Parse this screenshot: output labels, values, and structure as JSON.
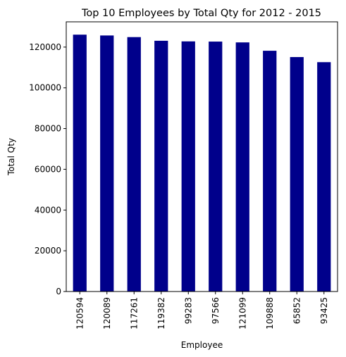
{
  "chart_data": {
    "type": "bar",
    "title": "Top 10 Employees by Total Qty for 2012 - 2015",
    "xlabel": "Employee",
    "ylabel": "Total Qty",
    "categories": [
      "120594",
      "120089",
      "117261",
      "119382",
      "99283",
      "97566",
      "121099",
      "109888",
      "65852",
      "93425"
    ],
    "values": [
      126100,
      125700,
      124900,
      123100,
      122800,
      122700,
      122300,
      118200,
      115100,
      112600
    ],
    "ylim": [
      0,
      132400
    ],
    "yticks": [
      0,
      20000,
      40000,
      60000,
      80000,
      100000,
      120000
    ],
    "bar_color": "#00008b",
    "grid": false,
    "legend": "none"
  }
}
